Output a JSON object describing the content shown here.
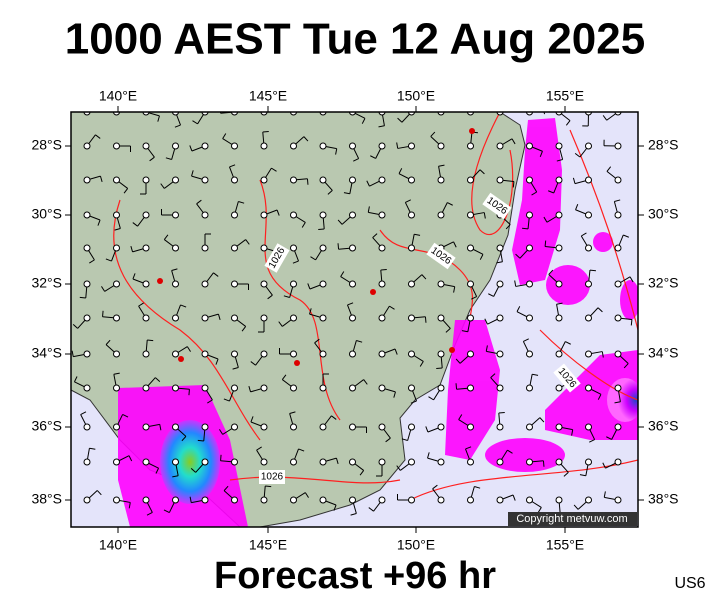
{
  "title": "1000 AEST Tue 12 Aug 2025",
  "footer": {
    "forecast": "Forecast +96 hr",
    "code": "US6"
  },
  "map": {
    "lon_labels": [
      "140°E",
      "145°E",
      "150°E",
      "155°E"
    ],
    "lat_labels": [
      "28°S",
      "30°S",
      "32°S",
      "34°S",
      "36°S",
      "38°S"
    ],
    "isobar_labels": [
      "1026",
      "1026",
      "1026",
      "1026",
      "1026"
    ],
    "copyright": "Copyright metvuw.com"
  }
}
